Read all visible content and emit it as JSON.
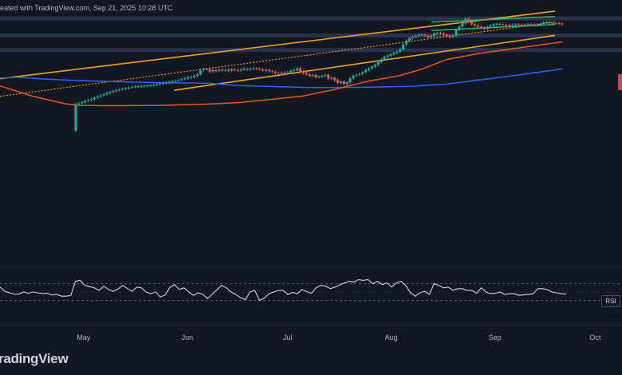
{
  "header": {
    "text": "eated with TradingView.com, Sep 21, 2025 10:28 UTC"
  },
  "brand": {
    "text": "radingView"
  },
  "rsi_tag": {
    "label": "RSI"
  },
  "x_axis": {
    "labels": [
      "May",
      "Jun",
      "Jul",
      "Aug",
      "Sep",
      "Oct"
    ]
  },
  "colors": {
    "background": "#131722",
    "zone": "#2a3550",
    "channel": "#f7a21b",
    "midline": "#f7a21b",
    "flag": "#22c55e",
    "ma_long": "#2962ff",
    "ma_mid": "#e8571f",
    "rsi_line": "#d1d4dc",
    "up": "#26a69a",
    "down": "#ef5350"
  },
  "chart_data": {
    "type": "candlestick",
    "x_range": [
      "2025-04-06",
      "2025-10-09"
    ],
    "y_range": [
      3780,
      10850
    ],
    "y_scale": "log",
    "candles_close": [
      7400,
      7430,
      7460,
      7500,
      7530,
      7560,
      7600,
      7640,
      7680,
      7720,
      7760,
      7790,
      7820,
      7850,
      7880,
      7900,
      7920,
      7940,
      7960,
      7980,
      7990,
      7995,
      8000,
      8010,
      8020,
      8040,
      8060,
      8080,
      8095,
      8110,
      8130,
      8150,
      8180,
      8200,
      8230,
      8260,
      8300,
      8310,
      8350,
      8400,
      8550,
      8600,
      8590,
      8500,
      8550,
      8520,
      8570,
      8540,
      8560,
      8530,
      8580,
      8560,
      8540,
      8570,
      8600,
      8580,
      8600,
      8620,
      8600,
      8580,
      8540,
      8560,
      8520,
      8500,
      8450,
      8430,
      8460,
      8440,
      8470,
      8540,
      8560,
      8620,
      8520,
      8450,
      8400,
      8350,
      8380,
      8300,
      8320,
      8350,
      8380,
      8250,
      8280,
      8200,
      8100,
      8150,
      8060,
      8120,
      8260,
      8350,
      8380,
      8420,
      8480,
      8560,
      8620,
      8680,
      8750,
      8850,
      8950,
      9050,
      9100,
      9150,
      9200,
      9250,
      9350,
      9550,
      9700,
      9800,
      9850,
      9900,
      9950,
      9950,
      9900,
      9850,
      9900,
      10000,
      10020,
      10000,
      9950,
      9900,
      9850,
      9900,
      10150,
      10300,
      10450,
      10650,
      10500,
      10400,
      10350,
      10300,
      10250,
      10200,
      10300,
      10350,
      10400,
      10420,
      10400,
      10380,
      10360,
      10350,
      10380,
      10400,
      10380,
      10360,
      10380,
      10400,
      10380,
      10360,
      10380,
      10420,
      10480,
      10500,
      10460,
      10440,
      10460,
      10430,
      10420
    ],
    "resistance_zones": [
      [
        10600,
        10750
      ],
      [
        9880,
        10000
      ],
      [
        9290,
        9400
      ]
    ],
    "ascending_channel": {
      "upper": [
        [
          "2025-04-06",
          8250
        ],
        [
          "2025-09-19",
          11000
        ]
      ],
      "lower": [
        [
          "2025-05-28",
          7850
        ],
        [
          "2025-09-19",
          9920
        ]
      ],
      "midline": [
        [
          "2025-04-06",
          7650
        ],
        [
          "2025-09-19",
          10500
        ]
      ]
    },
    "flag": {
      "upper": [
        [
          "2025-08-13",
          10500
        ],
        [
          "2025-09-19",
          10750
        ]
      ],
      "lower": [
        [
          "2025-08-13",
          10130
        ],
        [
          "2025-09-19",
          10390
        ]
      ]
    },
    "series": [
      {
        "values": [
          [
            0,
            8270
          ],
          [
            20,
            8300
          ],
          [
            60,
            8230
          ],
          [
            100,
            8180
          ],
          [
            150,
            8140
          ],
          [
            200,
            8110
          ],
          [
            260,
            8090
          ],
          [
            300,
            8010
          ],
          [
            360,
            7960
          ],
          [
            400,
            7940
          ],
          [
            460,
            7950
          ],
          [
            520,
            7990
          ],
          [
            560,
            8060
          ],
          [
            600,
            8200
          ],
          [
            650,
            8380
          ],
          [
            705,
            8600
          ]
        ]
      },
      {
        "values": [
          [
            0,
            8000
          ],
          [
            40,
            7660
          ],
          [
            80,
            7420
          ],
          [
            100,
            7360
          ],
          [
            140,
            7350
          ],
          [
            200,
            7360
          ],
          [
            260,
            7400
          ],
          [
            300,
            7450
          ],
          [
            340,
            7550
          ],
          [
            380,
            7660
          ],
          [
            420,
            7880
          ],
          [
            460,
            8150
          ],
          [
            500,
            8350
          ],
          [
            530,
            8600
          ],
          [
            560,
            8950
          ],
          [
            600,
            9180
          ],
          [
            650,
            9400
          ],
          [
            705,
            9650
          ]
        ]
      }
    ],
    "rsi": {
      "values": [
        62,
        52,
        48,
        45,
        45,
        50,
        47,
        50,
        48,
        46,
        47,
        43,
        44,
        40,
        40,
        42,
        76,
        78,
        66,
        63,
        60,
        54,
        64,
        56,
        52,
        57,
        66,
        58,
        52,
        62,
        60,
        50,
        46,
        50,
        38,
        43,
        61,
        68,
        56,
        60,
        50,
        42,
        48,
        44,
        34,
        45,
        56,
        66,
        60,
        50,
        44,
        36,
        32,
        50,
        54,
        30,
        35,
        46,
        50,
        54,
        54,
        44,
        49,
        46,
        56,
        51,
        47,
        60,
        66,
        64,
        58,
        62,
        67,
        72,
        76,
        74,
        80,
        78,
        80,
        70,
        76,
        68,
        72,
        62,
        72,
        76,
        66,
        48,
        40,
        48,
        52,
        44,
        70,
        66,
        60,
        62,
        54,
        58,
        58,
        54,
        54,
        47,
        60,
        50,
        46,
        47,
        50,
        44,
        46,
        46,
        42,
        43,
        44,
        46,
        58,
        58,
        56,
        50,
        48,
        46,
        45
      ],
      "bands": [
        70,
        30
      ]
    }
  }
}
